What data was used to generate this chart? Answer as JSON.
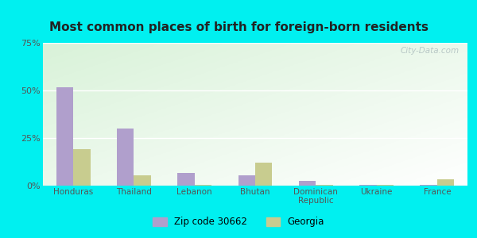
{
  "title": "Most common places of birth for foreign-born residents",
  "categories": [
    "Honduras",
    "Thailand",
    "Lebanon",
    "Bhutan",
    "Dominican\nRepublic",
    "Ukraine",
    "France"
  ],
  "zip_values": [
    51.5,
    30.0,
    6.5,
    5.5,
    2.5,
    0.5,
    0.5
  ],
  "georgia_values": [
    19.0,
    5.5,
    0.3,
    12.0,
    0.3,
    0.3,
    3.5
  ],
  "zip_color": "#b09fcc",
  "georgia_color": "#c8cc8f",
  "background_outer": "#00f0f0",
  "title_fontsize": 11,
  "legend_label_zip": "Zip code 30662",
  "legend_label_georgia": "Georgia",
  "ylim": [
    0,
    75
  ],
  "yticks": [
    0,
    25,
    50,
    75
  ],
  "ytick_labels": [
    "0%",
    "25%",
    "50%",
    "75%"
  ],
  "bar_width": 0.28,
  "watermark": "City-Data.com"
}
